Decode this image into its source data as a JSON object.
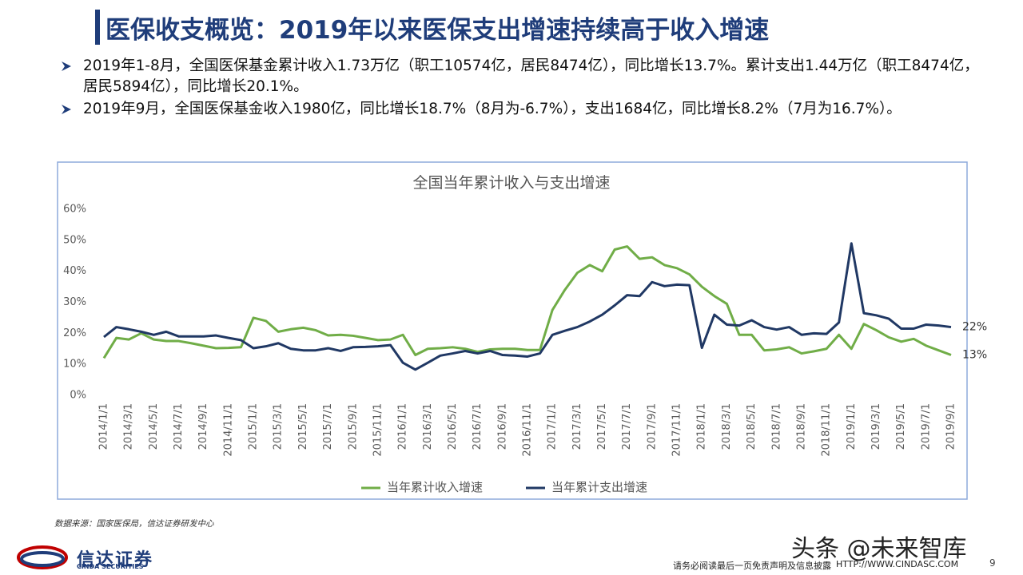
{
  "header": {
    "title": "医保收支概览：2019年以来医保支出增速持续高于收入增速"
  },
  "bullets": [
    "2019年1-8月，全国医保基金累计收入1.73万亿（职工10574亿，居民8474亿），同比增长13.7%。累计支出1.44万亿（职工8474亿，居民5894亿），同比增长20.1%。",
    "2019年9月，全国医保基金收入1980亿，同比增长18.7%（8月为-6.7%），支出1684亿，同比增长8.2%（7月为16.7%）。"
  ],
  "source": "数据来源：国家医保局，信达证券研发中心",
  "footer": {
    "logo": "信达证券",
    "logo_en": "CINDA SECURITIES",
    "disclaimer": "请务必阅读最后一页免责声明及信息披露",
    "url": "HTTP://WWW.CINDASC.COM",
    "page": "9",
    "watermark": "头条 @未来智库"
  },
  "chart_data": {
    "type": "line",
    "title": "全国当年累计收入与支出增速",
    "categories": [
      "2014/1/1",
      null,
      "2014/3/1",
      null,
      "2014/5/1",
      null,
      "2014/7/1",
      null,
      "2014/9/1",
      null,
      "2014/11/1",
      null,
      "2015/1/1",
      null,
      "2015/3/1",
      null,
      "2015/5/1",
      null,
      "2015/7/1",
      null,
      "2015/9/1",
      null,
      "2015/11/1",
      null,
      "2016/1/1",
      null,
      "2016/3/1",
      null,
      "2016/5/1",
      null,
      "2016/7/1",
      null,
      "2016/9/1",
      null,
      "2016/11/1",
      null,
      "2017/1/1",
      null,
      "2017/3/1",
      null,
      "2017/5/1",
      null,
      "2017/7/1",
      null,
      "2017/9/1",
      null,
      "2017/11/1",
      null,
      "2018/1/1",
      null,
      "2018/3/1",
      null,
      "2018/5/1",
      null,
      "2018/7/1",
      null,
      "2018/9/1",
      null,
      "2018/11/1",
      null,
      "2019/1/1",
      null,
      "2019/3/1",
      null,
      "2019/5/1",
      null,
      "2019/7/1",
      null,
      "2019/9/1"
    ],
    "series": [
      {
        "name": "当年累计收入增速",
        "color": "#70ad47",
        "values": [
          12,
          18.5,
          18,
          20,
          18,
          17.5,
          17.5,
          16.8,
          16,
          15.2,
          15.3,
          15.5,
          25,
          24,
          20.5,
          21.3,
          21.8,
          21,
          19.3,
          19.5,
          19.2,
          18.5,
          17.8,
          18,
          19.5,
          13,
          15,
          15.2,
          15.5,
          15,
          14,
          14.8,
          15,
          15,
          14.6,
          14.6,
          27.5,
          34,
          39.5,
          42,
          40,
          47,
          48,
          44,
          44.5,
          42,
          41,
          39,
          35,
          32,
          29.5,
          19.5,
          19.5,
          14.5,
          14.8,
          15.5,
          13.5,
          14.2,
          15,
          19.5,
          15,
          23,
          21,
          18.7,
          17.3,
          18.2,
          16,
          14.5,
          13
        ],
        "value_labels": [
          null,
          null,
          null,
          null,
          null,
          null,
          null,
          null,
          null,
          null,
          null,
          null,
          null,
          null,
          null,
          null,
          null,
          null,
          null,
          null,
          null,
          null,
          null,
          null,
          null,
          null,
          null,
          null,
          null,
          null,
          null,
          null,
          null,
          null,
          null,
          null,
          null,
          null,
          null,
          null,
          null,
          null,
          null,
          null,
          null,
          null,
          null,
          null,
          null,
          null,
          null,
          null,
          null,
          null,
          null,
          null,
          null,
          null,
          null,
          null,
          null,
          null,
          null,
          null,
          null,
          null,
          null,
          null,
          "13%"
        ]
      },
      {
        "name": "当年累计支出增速",
        "color": "#203864",
        "values": [
          18.8,
          22,
          21.3,
          20.5,
          19.5,
          20.5,
          19,
          19,
          19,
          19.3,
          18.5,
          17.8,
          15.2,
          15.8,
          16.8,
          15,
          14.5,
          14.5,
          15.2,
          14.3,
          15.5,
          15.6,
          15.8,
          16.2,
          10.5,
          8.3,
          10.5,
          12.8,
          13.5,
          14.3,
          13.5,
          14.3,
          13,
          12.8,
          12.5,
          13.5,
          19.5,
          20.8,
          22,
          23.8,
          26,
          29,
          32.3,
          32,
          36.5,
          35.2,
          35.7,
          35.5,
          15.3,
          26,
          22.8,
          22.5,
          24.2,
          22,
          21.2,
          22,
          19.5,
          20,
          19.8,
          23.5,
          49,
          26.5,
          25.8,
          24.7,
          21.5,
          21.5,
          22.8,
          22.5,
          22
        ],
        "value_labels": [
          null,
          null,
          null,
          null,
          null,
          null,
          null,
          null,
          null,
          null,
          null,
          null,
          null,
          null,
          null,
          null,
          null,
          null,
          null,
          null,
          null,
          null,
          null,
          null,
          null,
          null,
          null,
          null,
          null,
          null,
          null,
          null,
          null,
          null,
          null,
          null,
          null,
          null,
          null,
          null,
          null,
          null,
          null,
          null,
          null,
          null,
          null,
          null,
          null,
          null,
          null,
          null,
          null,
          null,
          null,
          null,
          null,
          null,
          null,
          null,
          null,
          null,
          null,
          null,
          null,
          null,
          null,
          null,
          "22%"
        ]
      }
    ],
    "ylim": [
      0,
      60
    ],
    "yticks": [
      {
        "value": 0,
        "label": "0%"
      },
      {
        "value": 10,
        "label": "10%"
      },
      {
        "value": 20,
        "label": "20%"
      },
      {
        "value": 30,
        "label": "30%"
      },
      {
        "value": 40,
        "label": "40%"
      },
      {
        "value": 50,
        "label": "50%"
      },
      {
        "value": 60,
        "label": "60%"
      }
    ],
    "grid": false,
    "legend": "bottom"
  }
}
